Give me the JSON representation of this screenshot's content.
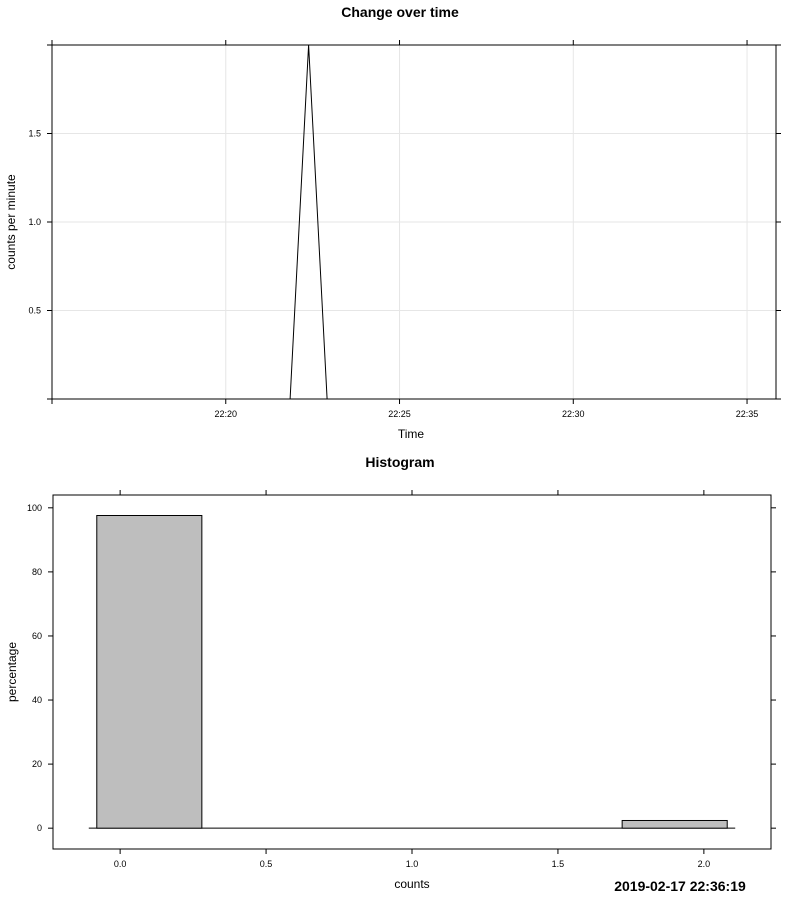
{
  "timestamp": "2019-02-17 22:36:19",
  "chart_data": [
    {
      "type": "line",
      "title": "Change over time",
      "xlabel": "Time",
      "ylabel": "counts per minute",
      "x_tick_labels": [
        "22:20",
        "22:25",
        "22:30",
        "22:35"
      ],
      "y_tick_labels": [
        "0.5",
        "1.0",
        "1.5"
      ],
      "xlim": [
        "22:15:00",
        "22:35:50"
      ],
      "ylim": [
        0,
        2
      ],
      "grid": true,
      "x": [
        "22:15:00",
        "22:21:51",
        "22:22:23",
        "22:22:55",
        "22:35:50"
      ],
      "y": [
        0,
        0,
        2,
        0,
        0
      ]
    },
    {
      "type": "bar",
      "title": "Histogram",
      "xlabel": "counts",
      "ylabel": "percentage",
      "x_tick_labels": [
        "0.0",
        "0.5",
        "1.0",
        "1.5",
        "2.0"
      ],
      "y_tick_labels": [
        "0",
        "20",
        "40",
        "60",
        "80",
        "100"
      ],
      "xlim": [
        -0.23,
        2.23
      ],
      "ylim": [
        -6.5,
        104
      ],
      "grid": false,
      "bins": [
        {
          "from": -0.08,
          "to": 0.28,
          "value": 97.6
        },
        {
          "from": 1.72,
          "to": 2.08,
          "value": 2.4
        }
      ],
      "bar_color": "#bebebe"
    }
  ]
}
